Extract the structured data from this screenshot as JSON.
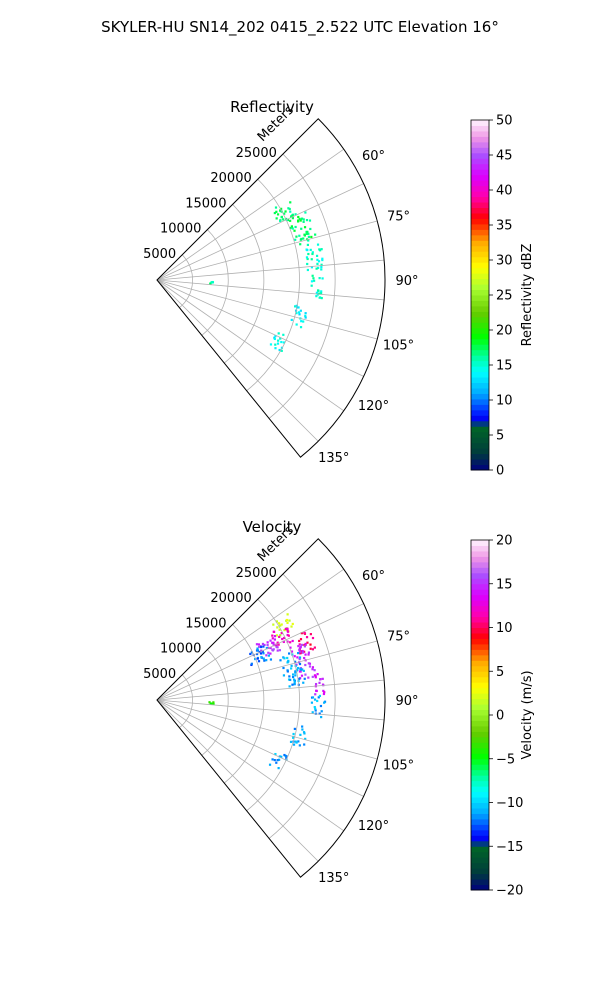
{
  "title": "SKYLER-HU  SN14_202  0415_2.522 UTC Elevation 16°",
  "chart_data": [
    {
      "type": "polar-sector",
      "title": "Reflectivity",
      "radial_label": "Meters",
      "r_ticks": [
        5000,
        10000,
        15000,
        20000,
        25000
      ],
      "r_tick_labels": [
        "5000",
        "10000",
        "15000",
        "20000",
        "25000"
      ],
      "theta_ticks": [
        60,
        75,
        90,
        105,
        120,
        135
      ],
      "theta_tick_labels": [
        "60°",
        "75°",
        "90°",
        "105°",
        "120°",
        "135°"
      ],
      "theta_range_deg": [
        45,
        141
      ],
      "r_max": 32000,
      "colorbar": {
        "label": "Reflectivity dBZ",
        "range": [
          0,
          50
        ],
        "ticks": [
          0,
          5,
          10,
          15,
          20,
          25,
          30,
          35,
          40,
          45,
          50
        ],
        "tick_labels": [
          "0",
          "5",
          "10",
          "15",
          "20",
          "25",
          "30",
          "35",
          "40",
          "45",
          "50"
        ]
      },
      "echoes": [
        {
          "theta_range": [
            58,
            65
          ],
          "r_range": [
            18500,
            22000
          ],
          "value": 17
        },
        {
          "theta_range": [
            64,
            76
          ],
          "r_range": [
            20000,
            23000
          ],
          "value": 17
        },
        {
          "theta_range": [
            76,
            86
          ],
          "r_range": [
            21000,
            23500
          ],
          "value": 15
        },
        {
          "theta_range": [
            88,
            96
          ],
          "r_range": [
            21500,
            23500
          ],
          "value": 15
        },
        {
          "theta_range": [
            100,
            108
          ],
          "r_range": [
            19500,
            21500
          ],
          "value": 14
        },
        {
          "theta_range": [
            113,
            120
          ],
          "r_range": [
            18000,
            20000
          ],
          "value": 14
        },
        {
          "theta_range": [
            91,
            93
          ],
          "r_range": [
            7200,
            7800
          ],
          "value": 16
        }
      ]
    },
    {
      "type": "polar-sector",
      "title": "Velocity",
      "radial_label": "Meters",
      "r_ticks": [
        5000,
        10000,
        15000,
        20000,
        25000
      ],
      "r_tick_labels": [
        "5000",
        "10000",
        "15000",
        "20000",
        "25000"
      ],
      "theta_ticks": [
        60,
        75,
        90,
        105,
        120,
        135
      ],
      "theta_tick_labels": [
        "60°",
        "75°",
        "90°",
        "105°",
        "120°",
        "135°"
      ],
      "theta_range_deg": [
        45,
        141
      ],
      "r_max": 32000,
      "colorbar": {
        "label": "Velocity (m/s)",
        "range": [
          -20,
          20
        ],
        "ticks": [
          -20,
          -15,
          -10,
          -5,
          0,
          5,
          10,
          15,
          20
        ],
        "tick_labels": [
          "−20",
          "−15",
          "−10",
          "−5",
          "0",
          "5",
          "10",
          "15",
          "20"
        ]
      },
      "echoes": [
        {
          "theta_range": [
            56,
            62
          ],
          "r_range": [
            19000,
            22000
          ],
          "value": 2
        },
        {
          "theta_range": [
            59,
            66
          ],
          "r_range": [
            18000,
            21000
          ],
          "value": 12
        },
        {
          "theta_range": [
            64,
            72
          ],
          "r_range": [
            21000,
            23500
          ],
          "value": 10
        },
        {
          "theta_range": [
            60,
            68
          ],
          "r_range": [
            16000,
            19000
          ],
          "value": 15
        },
        {
          "theta_range": [
            68,
            82
          ],
          "r_range": [
            20000,
            22500
          ],
          "value": 15
        },
        {
          "theta_range": [
            62,
            70
          ],
          "r_range": [
            14000,
            17000
          ],
          "value": -12
        },
        {
          "theta_range": [
            70,
            84
          ],
          "r_range": [
            18000,
            21000
          ],
          "value": -11
        },
        {
          "theta_range": [
            80,
            88
          ],
          "r_range": [
            21500,
            23500
          ],
          "value": 14
        },
        {
          "theta_range": [
            88,
            96
          ],
          "r_range": [
            21500,
            23500
          ],
          "value": -11
        },
        {
          "theta_range": [
            100,
            108
          ],
          "r_range": [
            19500,
            21500
          ],
          "value": -11
        },
        {
          "theta_range": [
            113,
            120
          ],
          "r_range": [
            18000,
            20000
          ],
          "value": -11
        },
        {
          "theta_range": [
            91,
            93
          ],
          "r_range": [
            7200,
            7800
          ],
          "value": -4
        }
      ]
    }
  ]
}
